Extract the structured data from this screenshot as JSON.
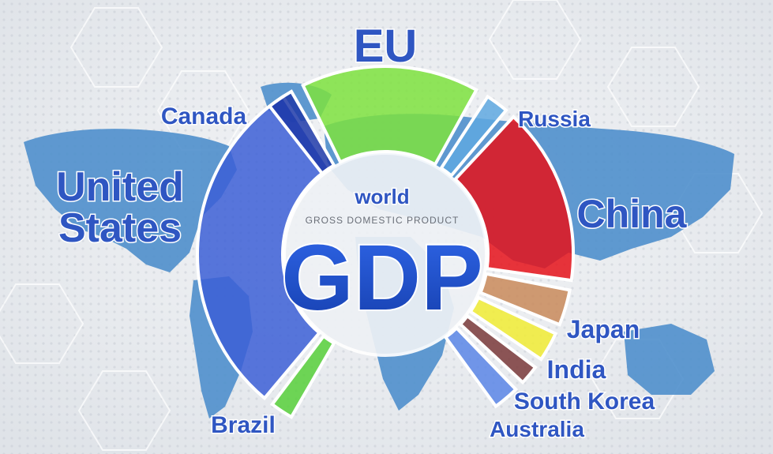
{
  "center": {
    "top_word": "world",
    "subtitle": "GROSS DOMESTIC PRODUCT",
    "main": "GDP"
  },
  "segments": [
    {
      "label": "United States",
      "lines": [
        "United",
        "States"
      ],
      "color": "#3c5fd6",
      "start": 220,
      "end": 327
    },
    {
      "label": "EU",
      "lines": [
        "EU"
      ],
      "color": "#7ee23e",
      "start": 334,
      "end": 29
    },
    {
      "label": "Canada",
      "lines": [
        "Canada"
      ],
      "color": "#1e3aa8",
      "start": 322,
      "end": 330
    },
    {
      "label": "Russia",
      "lines": [
        "Russia"
      ],
      "color": "#5fa8e0",
      "start": 33,
      "end": 40
    },
    {
      "label": "China",
      "lines": [
        "China"
      ],
      "color": "#e5121a",
      "start": 43,
      "end": 98
    },
    {
      "label": "Japan",
      "lines": [
        "Japan"
      ],
      "color": "#c98a5a",
      "start": 101,
      "end": 112
    },
    {
      "label": "India",
      "lines": [
        "India"
      ],
      "color": "#f1ec34",
      "start": 115,
      "end": 124
    },
    {
      "label": "South Korea",
      "lines": [
        "South Korea"
      ],
      "color": "#7a3a3a",
      "start": 127,
      "end": 133
    },
    {
      "label": "Australia",
      "lines": [
        "Australia"
      ],
      "color": "#5a86e6",
      "start": 136,
      "end": 144
    },
    {
      "label": "Brazil",
      "lines": [
        "Brazil"
      ],
      "color": "#57d03a",
      "start": 210,
      "end": 217
    }
  ]
}
